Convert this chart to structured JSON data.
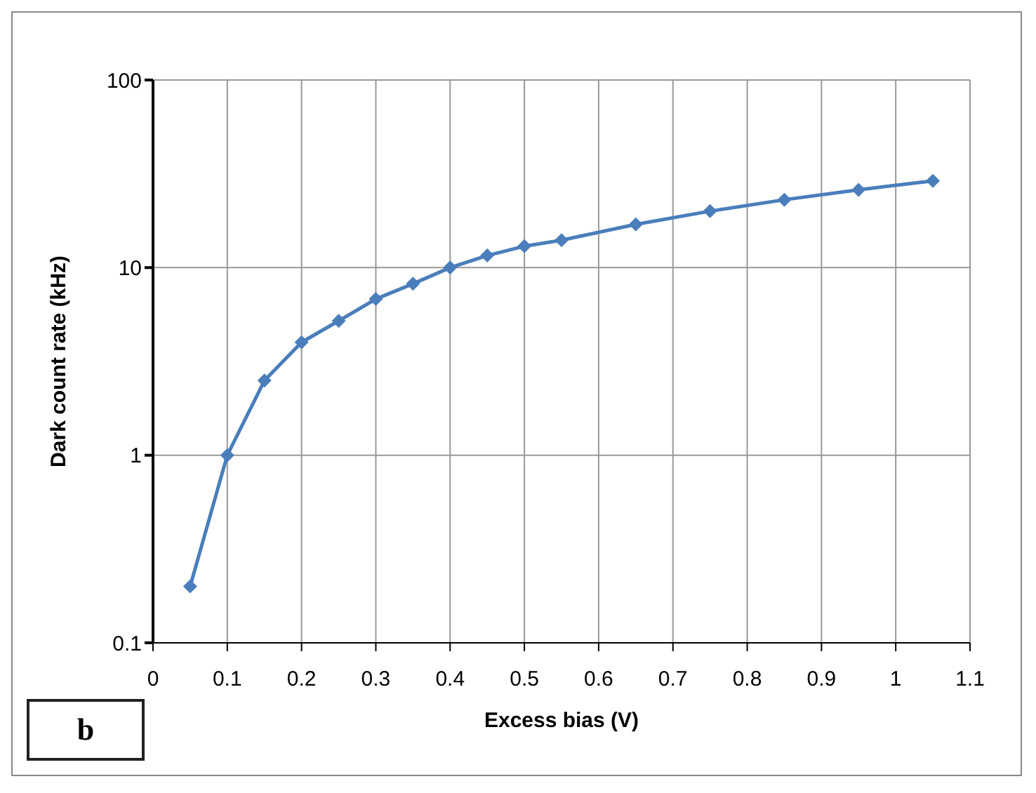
{
  "chart_data": {
    "type": "line",
    "xlabel": "Excess bias (V)",
    "ylabel": "Dark count rate (kHz)",
    "annotations": [
      "b"
    ],
    "x": [
      0.05,
      0.1,
      0.15,
      0.2,
      0.25,
      0.3,
      0.35,
      0.4,
      0.45,
      0.5,
      0.55,
      0.65,
      0.75,
      0.85,
      0.95,
      1.05
    ],
    "series": [
      {
        "color": "#4a7ebb",
        "values": [
          0.2,
          1.0,
          2.5,
          4.0,
          5.2,
          6.8,
          8.2,
          10,
          11.6,
          13,
          14,
          17,
          20,
          23,
          26,
          29
        ]
      }
    ],
    "xlim": [
      0,
      1.1
    ],
    "xticks": [
      0,
      0.1,
      0.2,
      0.3,
      0.4,
      0.5,
      0.6,
      0.7,
      0.8,
      0.9,
      1,
      1.1
    ],
    "ylim": [
      0.1,
      100
    ],
    "yticks": [
      0.1,
      1,
      10,
      100
    ],
    "log": "y",
    "grid": true,
    "marker": "diamond",
    "line_style": "solid"
  }
}
